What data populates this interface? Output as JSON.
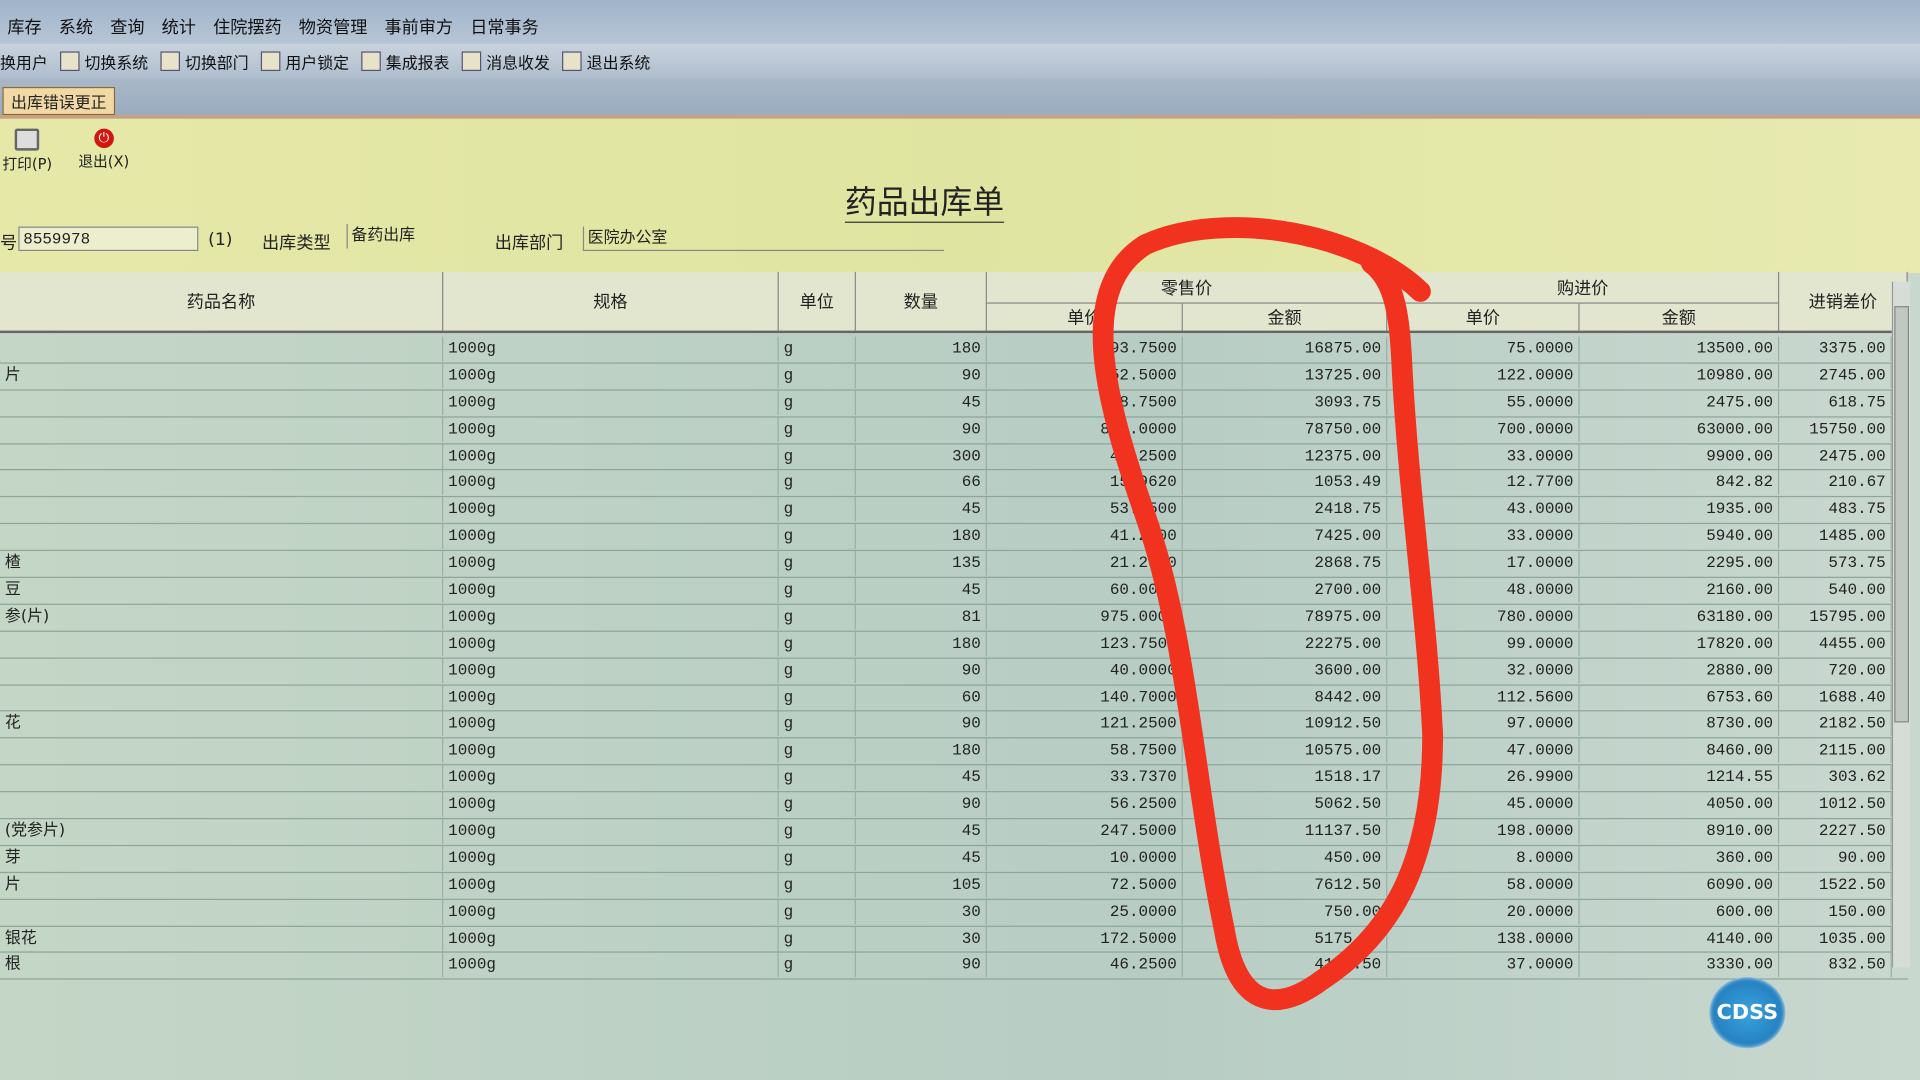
{
  "menu": [
    "库存",
    "系统",
    "查询",
    "统计",
    "住院摆药",
    "物资管理",
    "事前审方",
    "日常事务"
  ],
  "toolbar": [
    {
      "icon": "switch-user-icon",
      "label": "换用户"
    },
    {
      "icon": "switch-system-icon",
      "label": "切换系统"
    },
    {
      "icon": "switch-department-icon",
      "label": "切换部门"
    },
    {
      "icon": "user-lock-icon",
      "label": "用户锁定"
    },
    {
      "icon": "report-icon",
      "label": "集成报表"
    },
    {
      "icon": "info-icon",
      "label": "消息收发"
    },
    {
      "icon": "exit-system-icon",
      "label": "退出系统"
    }
  ],
  "tab": "出库错误更正",
  "actions": {
    "print": "打印(P)",
    "exit": "退出(X)"
  },
  "form": {
    "title": "药品出库单",
    "no_label": "号",
    "no_value": "8559978",
    "count": "(1)",
    "type_label": "出库类型",
    "type_value": "备药出库",
    "dept_label": "出库部门",
    "dept_value": "医院办公室"
  },
  "headers": {
    "name": "药品名称",
    "spec": "规格",
    "unit": "单位",
    "qty": "数量",
    "retail": "零售价",
    "retail_unit": "单价",
    "retail_amount": "金额",
    "purchase": "购进价",
    "purchase_unit": "单价",
    "purchase_amount": "金额",
    "diff": "进销差价"
  },
  "rows": [
    [
      "",
      "1000g",
      "g",
      "180",
      "93.7500",
      "16875.00",
      "75.0000",
      "13500.00",
      "3375.00"
    ],
    [
      "片",
      "1000g",
      "g",
      "90",
      "152.5000",
      "13725.00",
      "122.0000",
      "10980.00",
      "2745.00"
    ],
    [
      "",
      "1000g",
      "g",
      "45",
      "68.7500",
      "3093.75",
      "55.0000",
      "2475.00",
      "618.75"
    ],
    [
      "",
      "1000g",
      "g",
      "90",
      "875.0000",
      "78750.00",
      "700.0000",
      "63000.00",
      "15750.00"
    ],
    [
      "",
      "1000g",
      "g",
      "300",
      "41.2500",
      "12375.00",
      "33.0000",
      "9900.00",
      "2475.00"
    ],
    [
      "",
      "1000g",
      "g",
      "66",
      "15.9620",
      "1053.49",
      "12.7700",
      "842.82",
      "210.67"
    ],
    [
      "",
      "1000g",
      "g",
      "45",
      "53.7500",
      "2418.75",
      "43.0000",
      "1935.00",
      "483.75"
    ],
    [
      "",
      "1000g",
      "g",
      "180",
      "41.2500",
      "7425.00",
      "33.0000",
      "5940.00",
      "1485.00"
    ],
    [
      "楂",
      "1000g",
      "g",
      "135",
      "21.2500",
      "2868.75",
      "17.0000",
      "2295.00",
      "573.75"
    ],
    [
      "豆",
      "1000g",
      "g",
      "45",
      "60.0000",
      "2700.00",
      "48.0000",
      "2160.00",
      "540.00"
    ],
    [
      "参(片)",
      "1000g",
      "g",
      "81",
      "975.0000",
      "78975.00",
      "780.0000",
      "63180.00",
      "15795.00"
    ],
    [
      "",
      "1000g",
      "g",
      "180",
      "123.7500",
      "22275.00",
      "99.0000",
      "17820.00",
      "4455.00"
    ],
    [
      "",
      "1000g",
      "g",
      "90",
      "40.0000",
      "3600.00",
      "32.0000",
      "2880.00",
      "720.00"
    ],
    [
      "",
      "1000g",
      "g",
      "60",
      "140.7000",
      "8442.00",
      "112.5600",
      "6753.60",
      "1688.40"
    ],
    [
      "花",
      "1000g",
      "g",
      "90",
      "121.2500",
      "10912.50",
      "97.0000",
      "8730.00",
      "2182.50"
    ],
    [
      "",
      "1000g",
      "g",
      "180",
      "58.7500",
      "10575.00",
      "47.0000",
      "8460.00",
      "2115.00"
    ],
    [
      "",
      "1000g",
      "g",
      "45",
      "33.7370",
      "1518.17",
      "26.9900",
      "1214.55",
      "303.62"
    ],
    [
      "",
      "1000g",
      "g",
      "90",
      "56.2500",
      "5062.50",
      "45.0000",
      "4050.00",
      "1012.50"
    ],
    [
      "(党参片)",
      "1000g",
      "g",
      "45",
      "247.5000",
      "11137.50",
      "198.0000",
      "8910.00",
      "2227.50"
    ],
    [
      "芽",
      "1000g",
      "g",
      "45",
      "10.0000",
      "450.00",
      "8.0000",
      "360.00",
      "90.00"
    ],
    [
      "片",
      "1000g",
      "g",
      "105",
      "72.5000",
      "7612.50",
      "58.0000",
      "6090.00",
      "1522.50"
    ],
    [
      "",
      "1000g",
      "g",
      "30",
      "25.0000",
      "750.00",
      "20.0000",
      "600.00",
      "150.00"
    ],
    [
      "银花",
      "1000g",
      "g",
      "30",
      "172.5000",
      "5175.00",
      "138.0000",
      "4140.00",
      "1035.00"
    ],
    [
      "根",
      "1000g",
      "g",
      "90",
      "46.2500",
      "4162.50",
      "37.0000",
      "3330.00",
      "832.50"
    ]
  ],
  "badge": "CDSS",
  "colors": {
    "annotation": "#f0321e",
    "badge": "#1f7fc4",
    "form_bg": "#e4e8a8"
  }
}
